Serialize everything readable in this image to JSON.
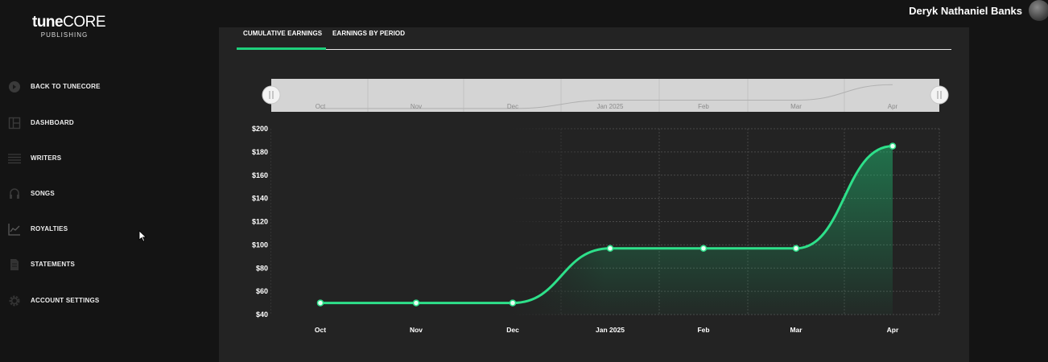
{
  "logo": {
    "brand_bold": "tune",
    "brand_light": "CORE",
    "sub": "PUBLISHING"
  },
  "nav": {
    "items": [
      {
        "label": "BACK TO TUNECORE",
        "icon": "back-circle-icon"
      },
      {
        "label": "DASHBOARD",
        "icon": "dashboard-icon"
      },
      {
        "label": "WRITERS",
        "icon": "writers-icon"
      },
      {
        "label": "SONGS",
        "icon": "songs-icon"
      },
      {
        "label": "ROYALTIES",
        "icon": "royalties-chart-icon"
      },
      {
        "label": "STATEMENTS",
        "icon": "statements-icon"
      },
      {
        "label": "ACCOUNT SETTINGS",
        "icon": "gear-icon"
      }
    ]
  },
  "user": {
    "name": "Deryk Nathaniel Banks"
  },
  "tabs": [
    {
      "label": "CUMULATIVE EARNINGS",
      "active": true
    },
    {
      "label": "EARNINGS BY PERIOD",
      "active": false
    }
  ],
  "colors": {
    "accent": "#1ed07c",
    "panel": "#232323",
    "background": "#141414"
  },
  "navigator": {
    "labels": [
      "Oct",
      "Nov",
      "Dec",
      "Jan 2025",
      "Feb",
      "Mar",
      "Apr"
    ]
  },
  "chart_data": {
    "type": "area",
    "categories": [
      "Oct",
      "Nov",
      "Dec",
      "Jan 2025",
      "Feb",
      "Mar",
      "Apr"
    ],
    "values": [
      50,
      50,
      50,
      97,
      97,
      97,
      185
    ],
    "ylim": [
      40,
      200
    ],
    "yticks": [
      40,
      60,
      80,
      100,
      120,
      140,
      160,
      180,
      200
    ],
    "ytick_labels": [
      "$40",
      "$60",
      "$80",
      "$100",
      "$120",
      "$140",
      "$160",
      "$180",
      "$200"
    ],
    "grid": true
  }
}
